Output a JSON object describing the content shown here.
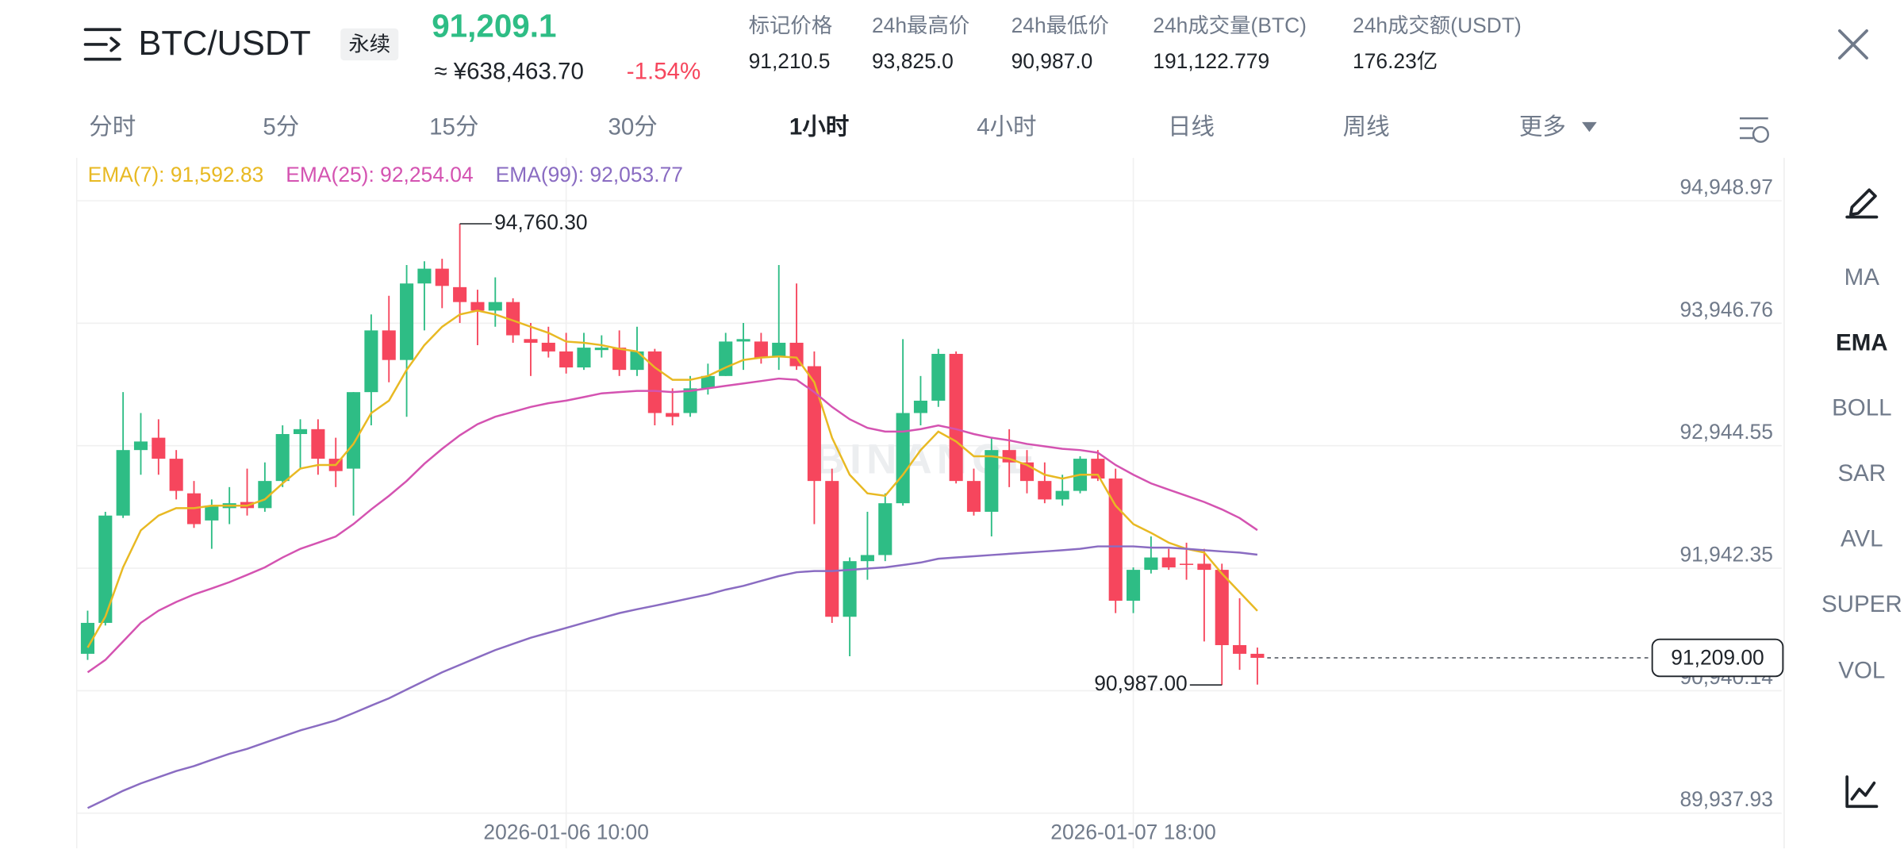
{
  "header": {
    "symbol": "BTC/USDT",
    "contract": "永续",
    "price": "91,209.1",
    "cny": "≈ ¥638,463.70",
    "change": "-1.54%",
    "stats": [
      {
        "label": "标记价格",
        "value": "91,210.5"
      },
      {
        "label": "24h最高价",
        "value": "93,825.0"
      },
      {
        "label": "24h最低价",
        "value": "90,987.0"
      },
      {
        "label": "24h成交量(BTC)",
        "value": "191,122.779"
      },
      {
        "label": "24h成交额(USDT)",
        "value": "176.23亿"
      }
    ]
  },
  "tabs": [
    "分时",
    "5分",
    "15分",
    "30分",
    "1小时",
    "4小时",
    "日线",
    "周线",
    "更多"
  ],
  "indicators": [
    "MA",
    "EMA",
    "BOLL",
    "SAR",
    "AVL",
    "SUPER",
    "VOL"
  ],
  "chart_data": {
    "type": "candlestick",
    "watermark": "BINANCE",
    "up_color": "#2ebd85",
    "down_color": "#f6465d",
    "grid": true,
    "x": [
      "2026-01-05 07:00",
      "2026-01-05 08:00",
      "2026-01-05 09:00",
      "2026-01-05 10:00",
      "2026-01-05 11:00",
      "2026-01-05 12:00",
      "2026-01-05 13:00",
      "2026-01-05 14:00",
      "2026-01-05 15:00",
      "2026-01-05 16:00",
      "2026-01-05 17:00",
      "2026-01-05 18:00",
      "2026-01-05 19:00",
      "2026-01-05 20:00",
      "2026-01-05 21:00",
      "2026-01-05 22:00",
      "2026-01-05 23:00",
      "2026-01-06 00:00",
      "2026-01-06 01:00",
      "2026-01-06 02:00",
      "2026-01-06 03:00",
      "2026-01-06 04:00",
      "2026-01-06 05:00",
      "2026-01-06 06:00",
      "2026-01-06 07:00",
      "2026-01-06 08:00",
      "2026-01-06 09:00",
      "2026-01-06 10:00",
      "2026-01-06 11:00",
      "2026-01-06 12:00",
      "2026-01-06 13:00",
      "2026-01-06 14:00",
      "2026-01-06 15:00",
      "2026-01-06 16:00",
      "2026-01-06 17:00",
      "2026-01-06 18:00",
      "2026-01-06 19:00",
      "2026-01-06 20:00",
      "2026-01-06 21:00",
      "2026-01-06 22:00",
      "2026-01-06 23:00",
      "2026-01-07 00:00",
      "2026-01-07 01:00",
      "2026-01-07 02:00",
      "2026-01-07 03:00",
      "2026-01-07 04:00",
      "2026-01-07 05:00",
      "2026-01-07 06:00",
      "2026-01-07 07:00",
      "2026-01-07 08:00",
      "2026-01-07 09:00",
      "2026-01-07 10:00",
      "2026-01-07 11:00",
      "2026-01-07 12:00",
      "2026-01-07 13:00",
      "2026-01-07 14:00",
      "2026-01-07 15:00",
      "2026-01-07 16:00",
      "2026-01-07 17:00",
      "2026-01-07 18:00",
      "2026-01-07 19:00",
      "2026-01-07 20:00",
      "2026-01-07 21:00",
      "2026-01-07 22:00",
      "2026-01-07 23:00",
      "2026-01-08 00:00",
      "2026-01-08 01:00"
    ],
    "open": [
      91242,
      91495,
      92373,
      92909,
      93010,
      92838,
      92555,
      92333,
      92434,
      92484,
      92434,
      92656,
      93040,
      93080,
      92838,
      92757,
      93383,
      93888,
      93646,
      94272,
      94393,
      94242,
      94120,
      94050,
      94120,
      93817,
      93787,
      93716,
      93585,
      93727,
      93747,
      93565,
      93716,
      93212,
      93212,
      93414,
      93515,
      93797,
      93797,
      93666,
      93787,
      93595,
      92656,
      91545,
      92000,
      92050,
      92474,
      93212,
      93313,
      93696,
      92656,
      92404,
      92909,
      92808,
      92656,
      92505,
      92575,
      92838,
      92676,
      91676,
      91929,
      92030,
      91979,
      91979,
      91929,
      91313,
      91242
    ],
    "high": [
      91595,
      92404,
      93383,
      93212,
      93161,
      92909,
      92656,
      92505,
      92606,
      92757,
      92808,
      93111,
      93161,
      93161,
      93010,
      93383,
      94019,
      94171,
      94423,
      94454,
      94474,
      94760.3,
      94221,
      94322,
      94151,
      93949,
      93918,
      93868,
      93868,
      93848,
      93888,
      93918,
      93737,
      93414,
      93515,
      93616,
      93868,
      93949,
      93868,
      94423,
      94272,
      93716,
      92757,
      92030,
      92404,
      92555,
      93817,
      93515,
      93737,
      93716,
      92757,
      93010,
      93080,
      92909,
      92808,
      92707,
      92858,
      92909,
      92757,
      91949,
      92202,
      92101,
      92151,
      92101,
      91979,
      91697,
      91293
    ],
    "low": [
      91192,
      91474,
      92353,
      92707,
      92707,
      92505,
      92272,
      92101,
      92303,
      92373,
      92404,
      92606,
      92757,
      92707,
      92606,
      92373,
      93111,
      93464,
      93181,
      93888,
      94070,
      93949,
      93767,
      93918,
      93787,
      93515,
      93666,
      93535,
      93565,
      93666,
      93515,
      93515,
      93111,
      93111,
      93181,
      93363,
      93515,
      93565,
      93616,
      93565,
      93565,
      92303,
      91495,
      91222,
      91848,
      92000,
      92454,
      93111,
      93262,
      92636,
      92373,
      92202,
      92606,
      92555,
      92474,
      92454,
      92555,
      92656,
      91575,
      91575,
      91899,
      91929,
      91848,
      91343,
      90987,
      91111,
      90990
    ],
    "close": [
      91495,
      92373,
      92909,
      92979,
      92838,
      92575,
      92303,
      92454,
      92474,
      92434,
      92656,
      93040,
      93080,
      92838,
      92737,
      93383,
      93888,
      93646,
      94272,
      94393,
      94252,
      94120,
      94050,
      94120,
      93848,
      93787,
      93716,
      93585,
      93747,
      93747,
      93565,
      93716,
      93212,
      93181,
      93414,
      93515,
      93797,
      93817,
      93666,
      93787,
      93595,
      92656,
      91545,
      92000,
      92050,
      92474,
      93212,
      93313,
      93696,
      92656,
      92404,
      92909,
      92808,
      92656,
      92505,
      92575,
      92838,
      92676,
      91676,
      91929,
      92030,
      91949,
      91969,
      91929,
      91313,
      91242,
      91209
    ],
    "series": [
      {
        "name": "EMA(7): 91,592.83",
        "color": "#e8b923",
        "values": [
          91293,
          91545,
          91949,
          92252,
          92373,
          92434,
          92434,
          92454,
          92454,
          92454,
          92505,
          92636,
          92757,
          92787,
          92787,
          92959,
          93212,
          93313,
          93565,
          93767,
          93918,
          94019,
          94050,
          94019,
          93969,
          93918,
          93868,
          93797,
          93787,
          93767,
          93737,
          93716,
          93585,
          93484,
          93484,
          93515,
          93585,
          93646,
          93666,
          93676,
          93666,
          93464,
          93010,
          92707,
          92555,
          92535,
          92707,
          92909,
          93060,
          92979,
          92858,
          92858,
          92838,
          92787,
          92707,
          92676,
          92707,
          92707,
          92454,
          92303,
          92232,
          92151,
          92101,
          92070,
          91899,
          91747,
          91592.83
        ]
      },
      {
        "name": "EMA(25): 92,254.04",
        "color": "#d453b1",
        "values": [
          91091,
          91192,
          91343,
          91495,
          91595,
          91666,
          91727,
          91777,
          91828,
          91888,
          91949,
          92030,
          92101,
          92151,
          92202,
          92303,
          92424,
          92535,
          92656,
          92797,
          92919,
          93030,
          93121,
          93181,
          93222,
          93262,
          93292,
          93313,
          93343,
          93373,
          93383,
          93393,
          93393,
          93383,
          93393,
          93414,
          93434,
          93454,
          93474,
          93494,
          93484,
          93383,
          93262,
          93161,
          93090,
          93060,
          93060,
          93080,
          93111,
          93080,
          93040,
          93010,
          92989,
          92959,
          92939,
          92919,
          92909,
          92888,
          92787,
          92707,
          92636,
          92585,
          92535,
          92484,
          92424,
          92353,
          92254.04
        ]
      },
      {
        "name": "EMA(99): 92,053.77",
        "color": "#8a6cc2",
        "values": [
          89980,
          90050,
          90121,
          90182,
          90232,
          90283,
          90323,
          90374,
          90424,
          90464,
          90515,
          90565,
          90616,
          90656,
          90697,
          90757,
          90818,
          90878,
          90949,
          91020,
          91091,
          91151,
          91212,
          91272,
          91323,
          91373,
          91414,
          91454,
          91495,
          91535,
          91575,
          91606,
          91636,
          91666,
          91697,
          91727,
          91767,
          91798,
          91838,
          91878,
          91909,
          91919,
          91919,
          91929,
          91939,
          91949,
          91969,
          91989,
          92020,
          92030,
          92040,
          92050,
          92060,
          92070,
          92080,
          92090,
          92101,
          92121,
          92121,
          92121,
          92111,
          92111,
          92101,
          92090,
          92080,
          92070,
          92053.77
        ]
      }
    ],
    "labels": {
      "high": "94,760.30",
      "low": "90,987.00",
      "last": "91,209.00"
    },
    "xlim": [
      "2026-01-05 06:23",
      "2026-01-09 06:35"
    ],
    "xticks": [
      "2026-01-06 10:00",
      "2026-01-07 18:00"
    ],
    "ylim": [
      89650,
      95300
    ],
    "yticks": [
      {
        "value": 89937.93,
        "label": "89,937.93"
      },
      {
        "value": 90940.14,
        "label": "90,940.14"
      },
      {
        "value": 91942.35,
        "label": "91,942.35"
      },
      {
        "value": 92944.55,
        "label": "92,944.55"
      },
      {
        "value": 93946.76,
        "label": "93,946.76"
      },
      {
        "value": 94948.97,
        "label": "94,948.97"
      }
    ]
  }
}
